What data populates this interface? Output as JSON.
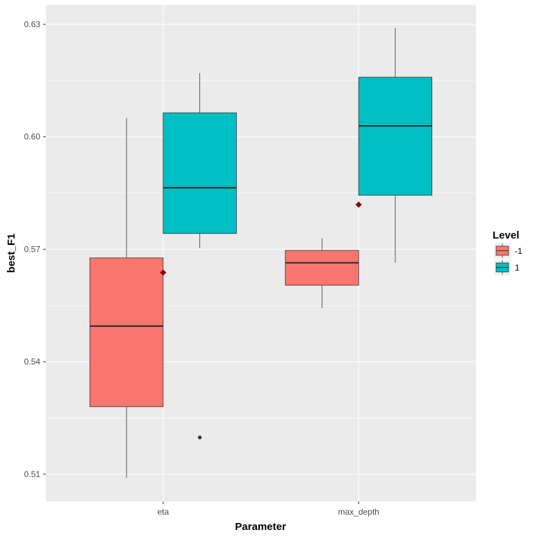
{
  "chart_data": {
    "type": "boxplot",
    "title": "",
    "xlabel": "Parameter",
    "ylabel": "best_F1",
    "ylim": [
      0.505,
      0.635
    ],
    "yticks": [
      0.51,
      0.54,
      0.57,
      0.6,
      0.63
    ],
    "ytick_labels": [
      "0.51",
      "0.54",
      "0.57",
      "0.60",
      "0.63"
    ],
    "categories": [
      "eta",
      "max_depth"
    ],
    "grid": true,
    "legend": {
      "title": "Level",
      "position": "right",
      "entries": [
        "-1",
        "1"
      ]
    },
    "colors": {
      "-1": "#F8766D",
      "1": "#00BFC4",
      "mean": "#8B0000",
      "panel": "#EBEBEB"
    },
    "series": [
      {
        "name": "-1",
        "boxes": [
          {
            "category": "eta",
            "whisker_low": 0.509,
            "q1": 0.528,
            "median": 0.5495,
            "q3": 0.5677,
            "whisker_high": 0.605,
            "outliers": []
          },
          {
            "category": "max_depth",
            "whisker_low": 0.5543,
            "q1": 0.5604,
            "median": 0.5664,
            "q3": 0.5697,
            "whisker_high": 0.5729,
            "outliers": []
          }
        ]
      },
      {
        "name": "1",
        "boxes": [
          {
            "category": "eta",
            "whisker_low": 0.5703,
            "q1": 0.5742,
            "median": 0.5864,
            "q3": 0.6064,
            "whisker_high": 0.617,
            "outliers": [
              0.5198
            ]
          },
          {
            "category": "max_depth",
            "whisker_low": 0.5664,
            "q1": 0.5844,
            "median": 0.6029,
            "q3": 0.6159,
            "whisker_high": 0.6291,
            "outliers": []
          }
        ]
      }
    ],
    "means": [
      {
        "category": "eta",
        "value": 0.5638
      },
      {
        "category": "max_depth",
        "value": 0.5819
      }
    ]
  }
}
